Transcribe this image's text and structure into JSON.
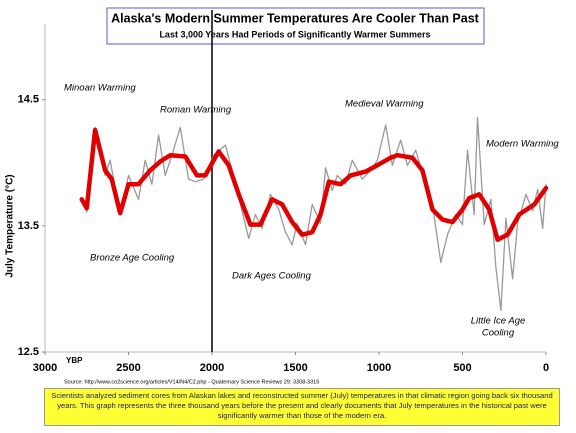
{
  "chart_data": {
    "type": "line",
    "title": "Alaska's Modern Summer Temperatures Are Cooler Than Past",
    "subtitle": "Last 3,000 Years Had Periods of Significantly Warmer Summers",
    "y_label": "July Temperature (°C)",
    "x_unit_label": "YBP",
    "xlim": [
      3000,
      0
    ],
    "xticks": [
      3000,
      2500,
      2000,
      1500,
      1000,
      500,
      0
    ],
    "ylim": [
      12.5,
      15.1
    ],
    "yticks": [
      12.5,
      13.5,
      14.5
    ],
    "divider": 2000,
    "annotations": [
      "Minoan Warming",
      "Roman Warming",
      "Medieval Warming",
      "Modern Warming",
      "Bronze Age Cooling",
      "Dark Ages Cooling",
      "Little Ice Age",
      "Cooling"
    ],
    "source": "Source: http://www.co2science.org/articles/V14/N4/C2.php  -  Quaternary Science Reviews 29: 3308-3316",
    "caption": "Scientists analyzed sediment cores from Alaskan lakes and reconstructed summer (July) temperatures in that climatic region going back six thousand years. This graph represents the three thousand years before the present and clearly documents that July temperatures in the historical past were significantly warmer than those of the modern era.",
    "series": [
      {
        "color": "#999999",
        "x": [
          2780,
          2750,
          2700,
          2640,
          2610,
          2550,
          2500,
          2440,
          2400,
          2360,
          2320,
          2280,
          2240,
          2190,
          2140,
          2100,
          2050,
          1990,
          1920,
          1880,
          1830,
          1780,
          1740,
          1700,
          1650,
          1600,
          1560,
          1520,
          1490,
          1440,
          1400,
          1350,
          1320,
          1280,
          1250,
          1200,
          1160,
          1100,
          1050,
          1010,
          960,
          920,
          870,
          830,
          780,
          730,
          680,
          630,
          590,
          540,
          500,
          470,
          430,
          410,
          370,
          330,
          300,
          270,
          240,
          200,
          170,
          120,
          80,
          50,
          20,
          0
        ],
        "values": [
          13.71,
          13.61,
          14.28,
          13.9,
          14.02,
          13.59,
          13.9,
          13.71,
          14.02,
          13.83,
          14.22,
          13.9,
          14.06,
          14.28,
          13.87,
          13.85,
          13.87,
          14.06,
          14.14,
          13.94,
          13.67,
          13.4,
          13.59,
          13.48,
          13.75,
          13.63,
          13.45,
          13.35,
          13.52,
          13.35,
          13.67,
          13.52,
          13.96,
          13.78,
          13.9,
          13.83,
          14.02,
          13.87,
          13.94,
          14.02,
          14.3,
          13.98,
          14.18,
          13.98,
          14.1,
          13.87,
          13.67,
          13.21,
          13.43,
          13.59,
          13.51,
          14.1,
          13.59,
          14.36,
          13.51,
          13.71,
          13.17,
          12.83,
          13.56,
          13.08,
          13.52,
          13.75,
          13.62,
          13.79,
          13.48,
          13.83
        ],
        "width": 1.3
      },
      {
        "color": "#e00000",
        "x": [
          2780,
          2750,
          2700,
          2640,
          2600,
          2550,
          2500,
          2440,
          2370,
          2310,
          2250,
          2160,
          2090,
          2040,
          1960,
          1900,
          1840,
          1770,
          1710,
          1640,
          1580,
          1520,
          1460,
          1400,
          1350,
          1300,
          1230,
          1170,
          1080,
          1010,
          930,
          890,
          800,
          740,
          680,
          620,
          560,
          500,
          460,
          400,
          340,
          290,
          230,
          160,
          70,
          0
        ],
        "values": [
          13.71,
          13.64,
          14.26,
          13.94,
          13.87,
          13.6,
          13.83,
          13.83,
          13.94,
          14.01,
          14.06,
          14.05,
          13.9,
          13.9,
          14.09,
          13.98,
          13.75,
          13.51,
          13.51,
          13.71,
          13.67,
          13.53,
          13.43,
          13.45,
          13.59,
          13.85,
          13.83,
          13.9,
          13.93,
          13.98,
          14.04,
          14.06,
          14.04,
          13.94,
          13.63,
          13.55,
          13.53,
          13.63,
          13.72,
          13.75,
          13.63,
          13.39,
          13.43,
          13.59,
          13.67,
          13.8
        ],
        "width": 4.5
      }
    ]
  }
}
